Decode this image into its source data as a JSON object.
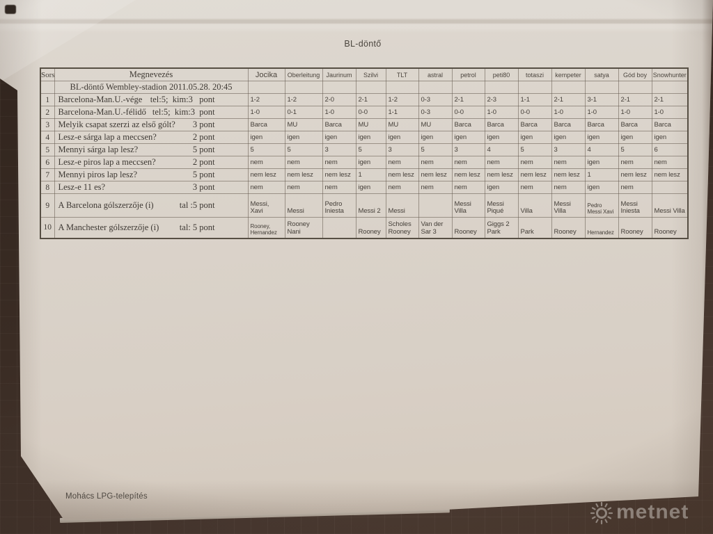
{
  "page": {
    "title": "BL-döntő",
    "footer_note": "Mohács LPG-telepítés",
    "watermark": "metnet"
  },
  "table": {
    "corner_header": "Sorsz",
    "name_header": "Megnevezés",
    "subtitle": "BL-döntő Wembley-stadion 2011.05.28. 20:45",
    "players": [
      "Jocika",
      "Oberleitung",
      "Jaurinum",
      "Szilvi",
      "TLT",
      "astral",
      "petrol",
      "peti80",
      "totaszi",
      "kempeter",
      "satya",
      "Gód boy",
      "Snowhunter"
    ],
    "rows": [
      {
        "num": "1",
        "label": "Barcelona-Man.U.-vége",
        "points": "tel:5;  kim:3   pont",
        "answers": [
          "1-2",
          "1-2",
          "2-0",
          "2-1",
          "1-2",
          "0-3",
          "2-1",
          "2-3",
          "1-1",
          "2-1",
          "3-1",
          "2-1",
          "2-1"
        ]
      },
      {
        "num": "2",
        "label": "Barcelona-Man.U.-félidő",
        "points": "tel:5;  kim:3  pont",
        "answers": [
          "1-0",
          "0-1",
          "1-0",
          "0-0",
          "1-1",
          "0-3",
          "0-0",
          "1-0",
          "0-0",
          "1-0",
          "1-0",
          "1-0",
          "1-0"
        ]
      },
      {
        "num": "3",
        "label": "Melyik csapat szerzi az első gólt?",
        "points": "3 pont",
        "answers": [
          "Barca",
          "MU",
          "Barca",
          "MU",
          "MU",
          "MU",
          "Barca",
          "Barca",
          "Barca",
          "Barca",
          "Barca",
          "Barca",
          "Barca"
        ]
      },
      {
        "num": "4",
        "label": "Lesz-e sárga lap a meccsen?",
        "points": "2 pont",
        "answers": [
          "igen",
          "igen",
          "igen",
          "igen",
          "igen",
          "igen",
          "igen",
          "igen",
          "igen",
          "igen",
          "igen",
          "igen",
          "igen"
        ]
      },
      {
        "num": "5",
        "label": "Mennyi sárga lap lesz?",
        "points": "5 pont",
        "answers": [
          "5",
          "5",
          "3",
          "5",
          "3",
          "5",
          "3",
          "4",
          "5",
          "3",
          "4",
          "5",
          "6"
        ]
      },
      {
        "num": "6",
        "label": "Lesz-e piros lap a meccsen?",
        "points": "2 pont",
        "answers": [
          "nem",
          "nem",
          "nem",
          "igen",
          "nem",
          "nem",
          "nem",
          "nem",
          "nem",
          "nem",
          "igen",
          "nem",
          "nem"
        ]
      },
      {
        "num": "7",
        "label": "Mennyi piros lap lesz?",
        "points": "5 pont",
        "answers": [
          "nem lesz",
          "nem lesz",
          "nem lesz",
          "1",
          "nem lesz",
          "nem lesz",
          "nem lesz",
          "nem lesz",
          "nem lesz",
          "nem lesz",
          "1",
          "nem lesz",
          "nem lesz"
        ]
      },
      {
        "num": "8",
        "label": "Lesz-e 11 es?",
        "points": "3 pont",
        "answers": [
          "nem",
          "nem",
          "nem",
          "igen",
          "nem",
          "nem",
          "nem",
          "igen",
          "nem",
          "nem",
          "igen",
          "nem",
          ""
        ]
      },
      {
        "num": "9",
        "label": "A Barcelona gólszerzője (i)",
        "points": "tal :5 pont",
        "answers": [
          "Messi,\nXavi",
          "Messi",
          "Pedro\nIniesta",
          "Messi 2",
          "Messi",
          "",
          "Messi\nVilla",
          "Messi\nPiqué",
          "Villa",
          "Messi\nVilla",
          "Pedro\nMessi Xavi",
          "Messi\nIniesta",
          "Messi Villa"
        ]
      },
      {
        "num": "10",
        "label": "A Manchester gólszerzője (i)",
        "points": "tal: 5 pont",
        "answers": [
          "Rooney,\nHernandez",
          "Rooney\nNani",
          "",
          "Rooney",
          "Scholes\nRooney",
          "Van der\nSar 3",
          "Rooney",
          "Giggs 2\nPark",
          "Park",
          "Rooney",
          "Hernandez",
          "Rooney",
          "Rooney"
        ]
      }
    ]
  },
  "colors": {
    "background": "#3a2c24",
    "paper": "#d9d2c9",
    "ink": "#413c37",
    "grid_line": "#7d756c",
    "watermark": "#ece8e2"
  }
}
